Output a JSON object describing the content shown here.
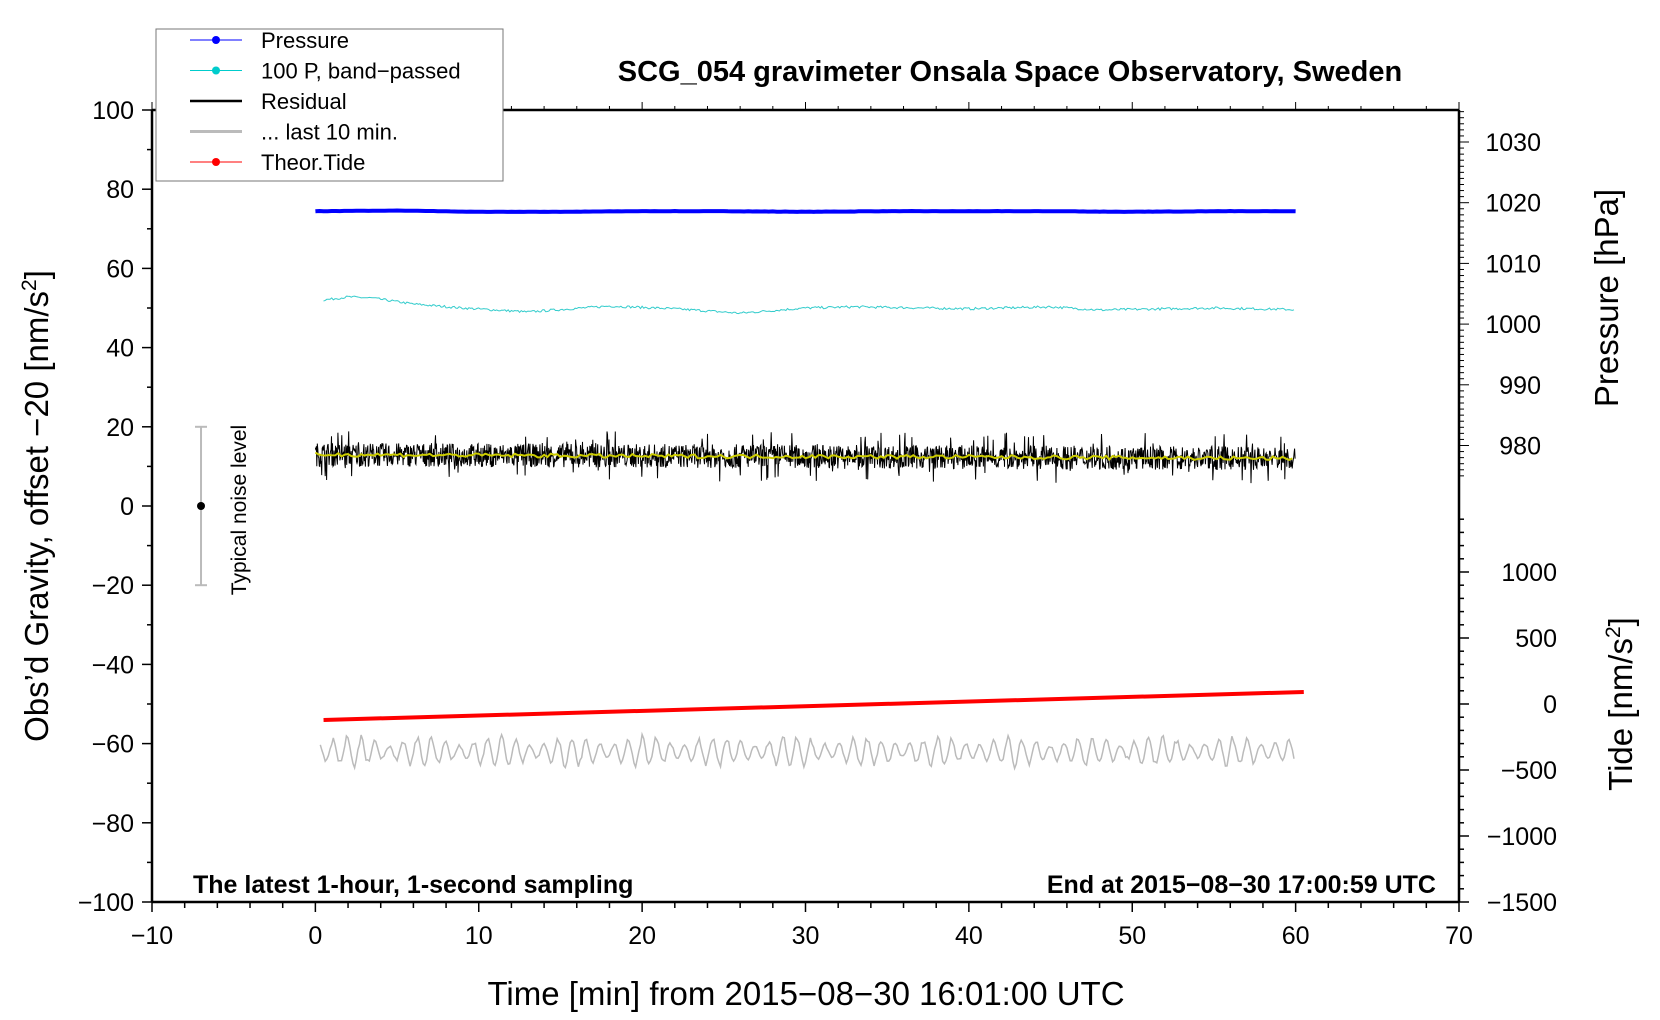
{
  "chart_data": {
    "type": "line",
    "title": "SCG_054 gravimeter Onsala Space Observatory, Sweden",
    "xlabel": "Time [min] from 2015−08−30 16:01:00 UTC",
    "ylabel": "Obs’d Gravity, offset −20 [nm/s²]",
    "ylabel_main": "Obs’d Gravity, offset −20 [nm/s",
    "y2label_main": "Pressure [hPa]",
    "y3label_main": "Tide [nm/s",
    "sup2": "2",
    "xlim": [
      -10,
      70
    ],
    "ylim": [
      -100,
      100
    ],
    "pressure_lim": [
      974.7,
      1035.4
    ],
    "tide_lim": [
      -1500,
      1480
    ],
    "xticks": [
      -10,
      0,
      10,
      20,
      30,
      40,
      50,
      60,
      70
    ],
    "xtick_labels": [
      "−10",
      "0",
      "10",
      "20",
      "30",
      "40",
      "50",
      "60",
      "70"
    ],
    "yticks": [
      100,
      80,
      60,
      40,
      20,
      0,
      -20,
      -40,
      -60,
      -80,
      -100
    ],
    "ytick_labels": [
      "100",
      "80",
      "60",
      "40",
      "20",
      "0",
      "−20",
      "−40",
      "−60",
      "−80",
      "−100"
    ],
    "pressure_ticks": [
      1030,
      1020,
      1010,
      1000,
      990,
      980
    ],
    "pressure_tick_labels": [
      "1030",
      "1020",
      "1010",
      "1000",
      "990",
      "980"
    ],
    "tide_ticks": [
      1000,
      500,
      0,
      -500,
      -1000,
      -1500
    ],
    "tide_tick_labels": [
      "1000",
      "500",
      "0",
      "−500",
      "−1000",
      "−1500"
    ],
    "annotations": {
      "left": "The latest 1-hour, 1-second sampling",
      "right": "End at 2015−08−30 17:00:59 UTC",
      "noise": "Typical noise level"
    },
    "noise_bar": {
      "x": -7,
      "center": 0,
      "low": -20,
      "high": 20
    },
    "legend": [
      {
        "label": "Pressure",
        "color": "#0000ff",
        "marker": true
      },
      {
        "label": "100 P, band−passed",
        "color": "#00cccc",
        "marker": true
      },
      {
        "label": "Residual",
        "color": "#000000",
        "marker": false
      },
      {
        "label": "... last 10 min.",
        "color": "#bbbbbb",
        "marker": false
      },
      {
        "label": "Theor.Tide",
        "color": "#ff0000",
        "marker": true
      }
    ],
    "legend_position": "top-left",
    "series": [
      {
        "name": "Pressure",
        "axis": "pressure",
        "color": "#0000ff",
        "x": [
          0,
          5,
          10,
          15,
          20,
          25,
          30,
          35,
          40,
          45,
          50,
          55,
          60
        ],
        "values": [
          1018.6,
          1018.7,
          1018.5,
          1018.5,
          1018.6,
          1018.6,
          1018.5,
          1018.6,
          1018.6,
          1018.6,
          1018.5,
          1018.6,
          1018.6
        ]
      },
      {
        "name": "100 P, band-passed",
        "axis": "gravity",
        "color": "#33cccc",
        "x": [
          0.5,
          2,
          3.5,
          6,
          9,
          13,
          18,
          22,
          26,
          30,
          33,
          40,
          45,
          48,
          55,
          60
        ],
        "values": [
          52,
          52.8,
          52.5,
          51,
          50,
          49,
          50.5,
          49.8,
          48.7,
          50,
          50.3,
          49.8,
          50.3,
          49.5,
          50,
          49.6
        ]
      },
      {
        "name": "Residual",
        "axis": "gravity",
        "color": "#000000",
        "x_range": [
          0,
          60
        ],
        "mean_start": 13,
        "mean_end": 12,
        "noise_amplitude": 5
      },
      {
        "name": "Residual mean",
        "axis": "gravity",
        "color": "#cccc00",
        "x": [
          0,
          10,
          20,
          30,
          40,
          50,
          60
        ],
        "values": [
          13,
          12.8,
          12.6,
          12.5,
          12.4,
          12.2,
          12
        ]
      },
      {
        "name": "... last 10 min.",
        "axis": "gravity",
        "color": "#bbbbbb",
        "x_range": [
          0.3,
          60
        ],
        "mean": -62,
        "amplitude": 4
      },
      {
        "name": "Theor.Tide",
        "axis": "tide",
        "color": "#ff0000",
        "x": [
          0.5,
          60.5
        ],
        "values": [
          -121,
          91
        ]
      }
    ]
  }
}
